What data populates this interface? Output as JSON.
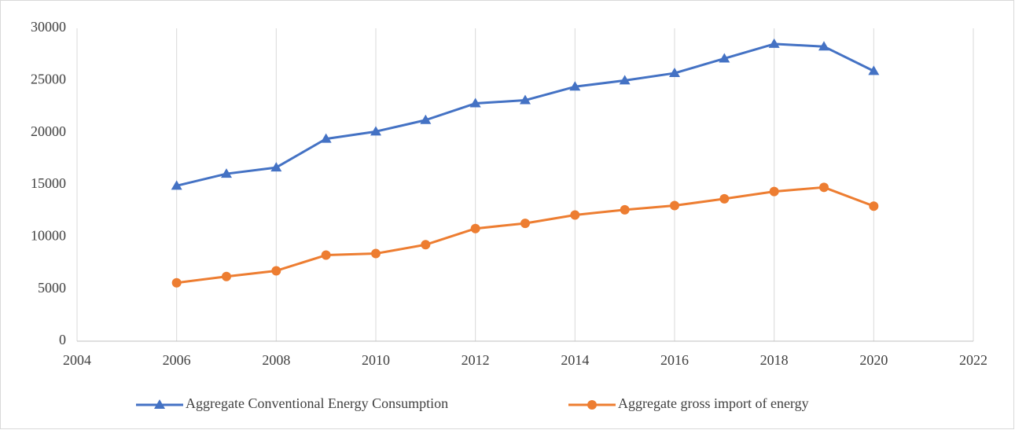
{
  "chart_data": {
    "type": "line",
    "x": [
      2006,
      2007,
      2008,
      2009,
      2010,
      2011,
      2012,
      2013,
      2014,
      2015,
      2016,
      2017,
      2018,
      2019,
      2020
    ],
    "series": [
      {
        "name": "Aggregate Conventional Energy Consumption",
        "color": "#4472c4",
        "marker": "triangle",
        "values": [
          14900,
          16050,
          16650,
          19400,
          20100,
          21200,
          22800,
          23100,
          24400,
          25000,
          25700,
          27100,
          28500,
          28250,
          25900
        ]
      },
      {
        "name": "Aggregate gross import of energy",
        "color": "#ed7d31",
        "marker": "circle",
        "values": [
          5600,
          6200,
          6750,
          8250,
          8400,
          9250,
          10800,
          11300,
          12100,
          12600,
          13000,
          13650,
          14350,
          14750,
          12950
        ]
      }
    ],
    "xlim": [
      2004,
      2022
    ],
    "xticks": [
      2004,
      2006,
      2008,
      2010,
      2012,
      2014,
      2016,
      2018,
      2020,
      2022
    ],
    "ylim": [
      0,
      30000
    ],
    "yticks": [
      0,
      5000,
      10000,
      15000,
      20000,
      25000,
      30000
    ],
    "grid": "x",
    "legend": "bottom"
  }
}
